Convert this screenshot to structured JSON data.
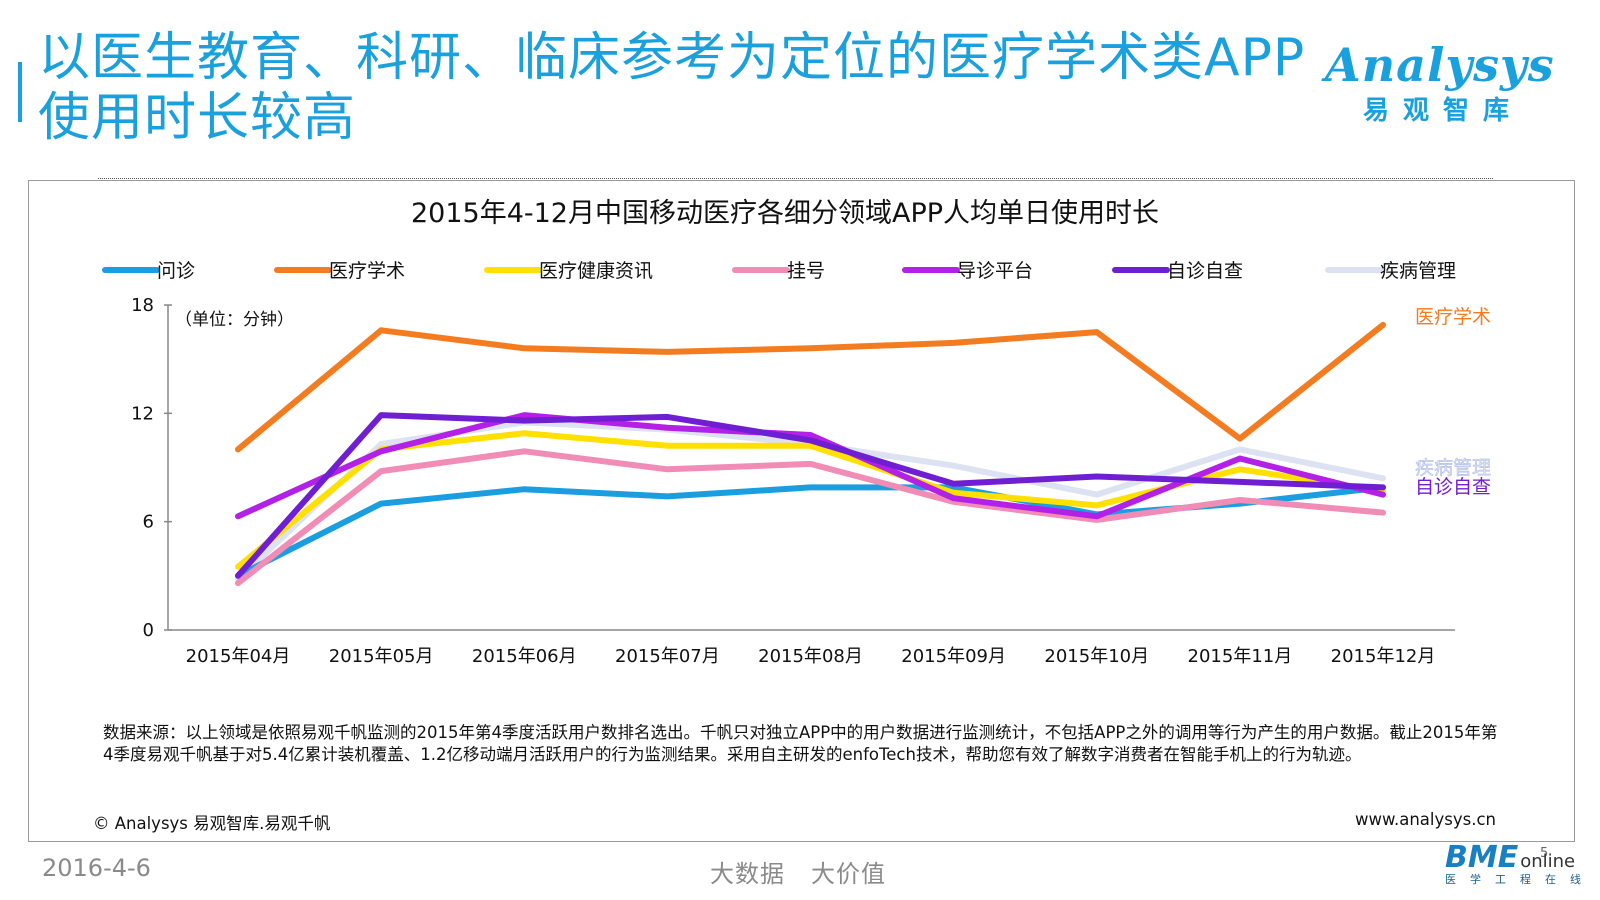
{
  "header": {
    "title_line1": "以医生教育、科研、临床参考为定位的医疗学术类APP",
    "title_line2": "使用时长较高",
    "logo_word": "Analysys",
    "logo_sub": "易观智库"
  },
  "colors": {
    "accent": "#1aa0dc",
    "问诊": "#1a9ee0",
    "医疗学术": "#f37b20",
    "医疗健康资讯": "#ffe000",
    "挂号": "#f08cb6",
    "导诊平台": "#b320e6",
    "自诊自查": "#6f1fd1",
    "疾病管理": "#dde2f2"
  },
  "chart_data": {
    "type": "line",
    "title": "2015年4-12月中国移动医疗各细分领域APP人均单日使用时长",
    "unit_note": "（单位：分钟）",
    "categories": [
      "2015年04月",
      "2015年05月",
      "2015年06月",
      "2015年07月",
      "2015年08月",
      "2015年09月",
      "2015年10月",
      "2015年11月",
      "2015年12月"
    ],
    "ylim": [
      0,
      18
    ],
    "yticks": [
      0,
      6,
      12,
      18
    ],
    "legend_position": "top",
    "series": [
      {
        "name": "问诊",
        "values": [
          3.0,
          7.0,
          7.8,
          7.4,
          7.9,
          7.9,
          6.4,
          7.0,
          7.9
        ]
      },
      {
        "name": "医疗学术",
        "values": [
          10.0,
          16.6,
          15.6,
          15.4,
          15.6,
          15.9,
          16.5,
          10.6,
          16.9
        ]
      },
      {
        "name": "医疗健康资讯",
        "values": [
          3.5,
          10.0,
          10.9,
          10.2,
          10.2,
          7.6,
          6.9,
          8.9,
          7.7
        ]
      },
      {
        "name": "挂号",
        "values": [
          2.6,
          8.8,
          9.9,
          8.9,
          9.2,
          7.1,
          6.1,
          7.2,
          6.5
        ]
      },
      {
        "name": "导诊平台",
        "values": [
          6.3,
          9.9,
          11.9,
          11.2,
          10.8,
          7.3,
          6.3,
          9.5,
          7.5
        ]
      },
      {
        "name": "自诊自查",
        "values": [
          3.0,
          11.9,
          11.6,
          11.8,
          10.5,
          8.1,
          8.5,
          8.2,
          7.9
        ]
      },
      {
        "name": "疾病管理",
        "values": [
          2.8,
          10.3,
          11.5,
          11.1,
          10.3,
          9.1,
          7.5,
          10.0,
          8.4
        ]
      }
    ],
    "end_labels": [
      "医疗学术",
      "疾病管理",
      "自诊自查"
    ]
  },
  "footer": {
    "note": "数据来源：以上领域是依照易观千帆监测的2015年第4季度活跃用户数排名选出。千帆只对独立APP中的用户数据进行监测统计，不包括APP之外的调用等行为产生的用户数据。截止2015年第4季度易观千帆基于对5.4亿累计装机覆盖、1.2亿移动端月活跃用户的行为监测结果。采用自主研发的enfoTech技术，帮助您有效了解数字消费者在智能手机上的行为轨迹。",
    "copyright": "© Analysys 易观智库.易观千帆",
    "site": "www.analysys.cn",
    "date": "2016-4-6",
    "slogan_1": "大数据",
    "slogan_2": "大价值",
    "page_number": "5",
    "bme_main": "BME",
    "bme_online": "online",
    "bme_sub": "医学工程在线"
  }
}
